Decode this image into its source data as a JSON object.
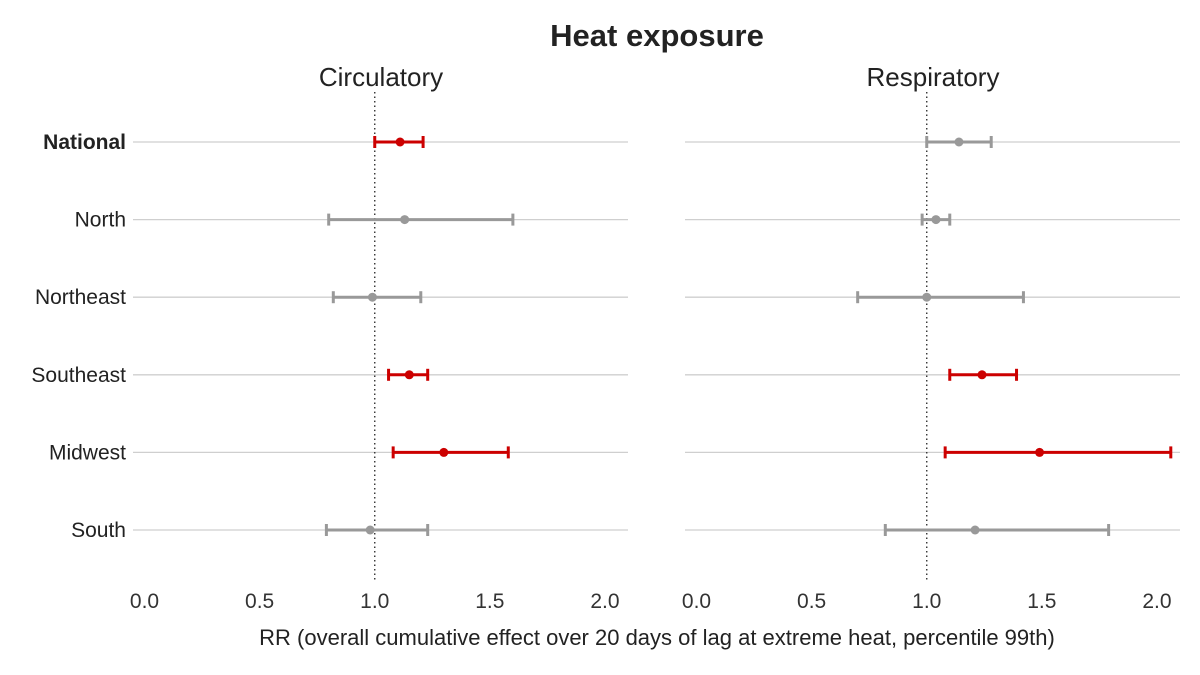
{
  "chart_data": {
    "type": "forest",
    "title": "Heat exposure",
    "xlabel": "RR (overall cumulative effect over 20 days of lag at extreme heat, percentile 99th)",
    "categories": [
      "National",
      "North",
      "Northeast",
      "Southeast",
      "Midwest",
      "South"
    ],
    "xlim": [
      -0.05,
      2.1
    ],
    "xticks": [
      "0.0",
      "0.5",
      "1.0",
      "1.5",
      "2.0"
    ],
    "xtick_values": [
      0,
      0.5,
      1.0,
      1.5,
      2.0
    ],
    "reference_line": 1.0,
    "grid": "horizontal",
    "colors": {
      "significant": "#cc0000",
      "nonsignificant": "#999999"
    },
    "panels": [
      {
        "name": "Circulatory",
        "points": [
          {
            "category": "National",
            "rr": 1.11,
            "lower": 1.0,
            "upper": 1.21,
            "significant": true
          },
          {
            "category": "North",
            "rr": 1.13,
            "lower": 0.8,
            "upper": 1.6,
            "significant": false
          },
          {
            "category": "Northeast",
            "rr": 0.99,
            "lower": 0.82,
            "upper": 1.2,
            "significant": false
          },
          {
            "category": "Southeast",
            "rr": 1.15,
            "lower": 1.06,
            "upper": 1.23,
            "significant": true
          },
          {
            "category": "Midwest",
            "rr": 1.3,
            "lower": 1.08,
            "upper": 1.58,
            "significant": true
          },
          {
            "category": "South",
            "rr": 0.98,
            "lower": 0.79,
            "upper": 1.23,
            "significant": false
          }
        ]
      },
      {
        "name": "Respiratory",
        "points": [
          {
            "category": "National",
            "rr": 1.14,
            "lower": 1.0,
            "upper": 1.28,
            "significant": false
          },
          {
            "category": "North",
            "rr": 1.04,
            "lower": 0.98,
            "upper": 1.1,
            "significant": false
          },
          {
            "category": "Northeast",
            "rr": 1.0,
            "lower": 0.7,
            "upper": 1.42,
            "significant": false
          },
          {
            "category": "Southeast",
            "rr": 1.24,
            "lower": 1.1,
            "upper": 1.39,
            "significant": true
          },
          {
            "category": "Midwest",
            "rr": 1.49,
            "lower": 1.08,
            "upper": 2.06,
            "significant": true
          },
          {
            "category": "South",
            "rr": 1.21,
            "lower": 0.82,
            "upper": 1.79,
            "significant": false
          }
        ]
      }
    ]
  }
}
